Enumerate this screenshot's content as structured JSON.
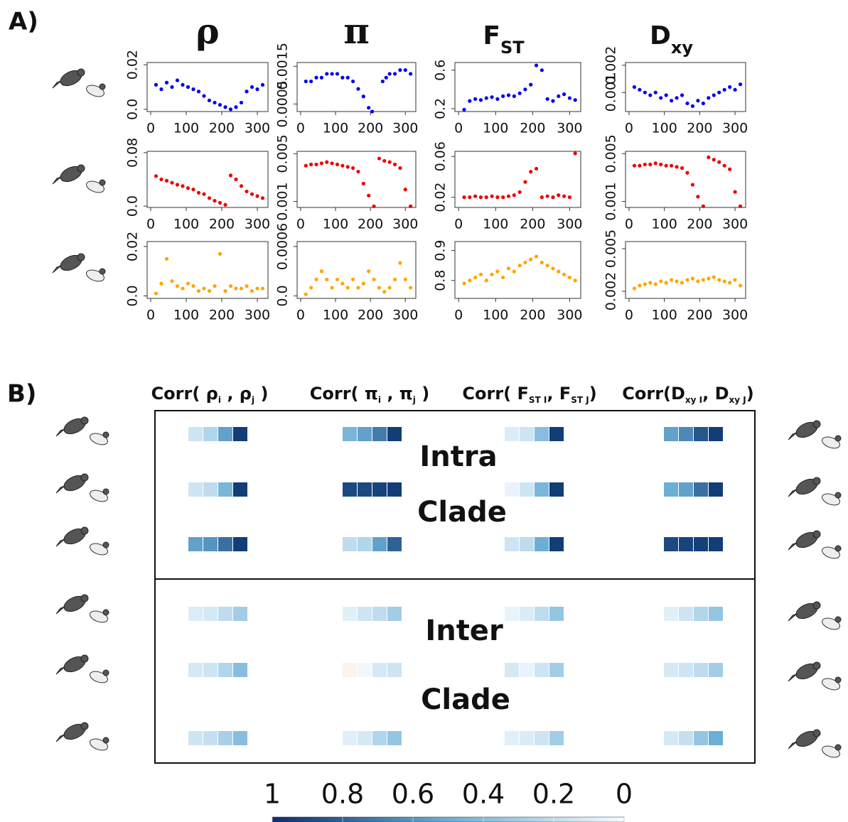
{
  "labels": {
    "a": "A)",
    "b": "B)"
  },
  "column_titles": [
    {
      "main": "ρ"
    },
    {
      "main": "π"
    },
    {
      "main": "F",
      "sub": "ST"
    },
    {
      "main": "D",
      "sub": "xy"
    }
  ],
  "chart_data": [
    {
      "type": "scatter",
      "color": "#0000ee",
      "xlim": [
        -10,
        330
      ],
      "xticks": [
        0,
        100,
        200,
        300
      ],
      "ylim": [
        -0.001,
        0.021
      ],
      "yticks": [
        {
          "value": 0,
          "label": "0.0"
        },
        0.02
      ],
      "x": [
        15,
        30,
        45,
        60,
        75,
        90,
        105,
        120,
        135,
        150,
        165,
        180,
        195,
        210,
        225,
        240,
        255,
        270,
        285,
        300,
        315
      ],
      "values": [
        0.011,
        0.009,
        0.012,
        0.01,
        0.013,
        0.011,
        0.01,
        0.009,
        0.008,
        0.006,
        0.004,
        0.003,
        0.002,
        0.001,
        0,
        0.001,
        0.003,
        0.008,
        0.01,
        0.009,
        0.011
      ]
    },
    {
      "type": "scatter",
      "color": "#0000ee",
      "xlim": [
        -10,
        330
      ],
      "xticks": [
        0,
        100,
        200,
        300
      ],
      "ylim": [
        0.0003,
        0.0016
      ],
      "yticks": [
        0.0005,
        0.0015
      ],
      "x": [
        15,
        30,
        45,
        60,
        75,
        90,
        105,
        120,
        135,
        150,
        165,
        180,
        195,
        205,
        235,
        245,
        255,
        270,
        285,
        300,
        315
      ],
      "values": [
        0.0011,
        0.0011,
        0.0012,
        0.0012,
        0.0013,
        0.0013,
        0.0013,
        0.0012,
        0.0012,
        0.0011,
        0.0009,
        0.0007,
        0.0004,
        0.0003,
        0.0011,
        0.0012,
        0.0013,
        0.0013,
        0.0014,
        0.0014,
        0.0013
      ]
    },
    {
      "type": "scatter",
      "color": "#0000ee",
      "xlim": [
        -10,
        330
      ],
      "xticks": [
        0,
        100,
        200,
        300
      ],
      "ylim": [
        0.17,
        0.68
      ],
      "yticks": [
        0.2,
        0.6
      ],
      "x": [
        15,
        30,
        45,
        60,
        75,
        90,
        105,
        120,
        135,
        150,
        165,
        180,
        195,
        210,
        225,
        240,
        255,
        270,
        285,
        300,
        315
      ],
      "values": [
        0.19,
        0.28,
        0.3,
        0.29,
        0.31,
        0.32,
        0.3,
        0.33,
        0.34,
        0.33,
        0.36,
        0.4,
        0.45,
        0.65,
        0.6,
        0.3,
        0.28,
        0.33,
        0.35,
        0.31,
        0.29
      ]
    },
    {
      "type": "scatter",
      "color": "#0000ee",
      "xlim": [
        -10,
        330
      ],
      "xticks": [
        0,
        100,
        200,
        300
      ],
      "ylim": [
        0.0003,
        0.0021
      ],
      "yticks": [
        0.001,
        0.002
      ],
      "x": [
        15,
        30,
        45,
        60,
        75,
        90,
        105,
        120,
        135,
        150,
        165,
        180,
        195,
        210,
        225,
        240,
        255,
        270,
        285,
        300,
        315
      ],
      "values": [
        0.0012,
        0.0011,
        0.001,
        0.0009,
        0.001,
        0.0008,
        0.0009,
        0.0007,
        0.0008,
        0.0009,
        0.0006,
        0.0005,
        0.0007,
        0.0006,
        0.0008,
        0.0009,
        0.001,
        0.0011,
        0.0012,
        0.0011,
        0.0013
      ]
    },
    {
      "type": "scatter",
      "color": "#ee0000",
      "xlim": [
        -10,
        330
      ],
      "xticks": [
        0,
        100,
        200,
        300
      ],
      "ylim": [
        -0.002,
        0.082
      ],
      "yticks": [
        {
          "value": 0,
          "label": "0.0"
        },
        0.08
      ],
      "x": [
        15,
        30,
        45,
        60,
        75,
        90,
        105,
        120,
        135,
        150,
        165,
        180,
        195,
        210,
        225,
        240,
        255,
        270,
        285,
        300,
        315
      ],
      "values": [
        0.045,
        0.04,
        0.038,
        0.035,
        0.032,
        0.03,
        0.027,
        0.025,
        0.02,
        0.018,
        0.012,
        0.008,
        0.005,
        0.002,
        0.046,
        0.04,
        0.03,
        0.022,
        0.018,
        0.015,
        0.012
      ]
    },
    {
      "type": "scatter",
      "color": "#ee0000",
      "xlim": [
        -10,
        330
      ],
      "xticks": [
        0,
        100,
        200,
        300
      ],
      "ylim": [
        0.0005,
        0.0052
      ],
      "yticks": [
        0.001,
        0.005
      ],
      "x": [
        15,
        30,
        45,
        60,
        75,
        90,
        105,
        120,
        135,
        150,
        165,
        180,
        195,
        210,
        225,
        240,
        255,
        270,
        285,
        300,
        315
      ],
      "values": [
        0.004,
        0.0041,
        0.0041,
        0.0042,
        0.0043,
        0.0042,
        0.0041,
        0.004,
        0.0039,
        0.0038,
        0.0035,
        0.0025,
        0.0015,
        0.0006,
        0.0046,
        0.0044,
        0.0043,
        0.0041,
        0.0038,
        0.002,
        0.0006
      ]
    },
    {
      "type": "scatter",
      "color": "#ee0000",
      "xlim": [
        -10,
        330
      ],
      "xticks": [
        0,
        100,
        200,
        300
      ],
      "ylim": [
        0.01,
        0.065
      ],
      "yticks": [
        0.02,
        0.06
      ],
      "x": [
        15,
        30,
        45,
        60,
        75,
        90,
        105,
        120,
        135,
        150,
        165,
        180,
        195,
        210,
        225,
        240,
        255,
        270,
        285,
        300,
        315
      ],
      "values": [
        0.02,
        0.02,
        0.021,
        0.02,
        0.02,
        0.021,
        0.02,
        0.02,
        0.021,
        0.022,
        0.025,
        0.035,
        0.045,
        0.048,
        0.02,
        0.021,
        0.02,
        0.022,
        0.021,
        0.02,
        0.063
      ]
    },
    {
      "type": "scatter",
      "color": "#ee0000",
      "xlim": [
        -10,
        330
      ],
      "xticks": [
        0,
        100,
        200,
        300
      ],
      "ylim": [
        0.0005,
        0.0052
      ],
      "yticks": [
        0.001,
        0.005
      ],
      "x": [
        15,
        30,
        45,
        60,
        75,
        90,
        105,
        120,
        135,
        150,
        165,
        180,
        195,
        210,
        225,
        240,
        255,
        270,
        285,
        300,
        315
      ],
      "values": [
        0.004,
        0.004,
        0.0041,
        0.0041,
        0.0042,
        0.0041,
        0.004,
        0.004,
        0.0039,
        0.0038,
        0.0034,
        0.0024,
        0.0014,
        0.0006,
        0.0047,
        0.0045,
        0.0043,
        0.004,
        0.0037,
        0.0018,
        0.0006
      ]
    },
    {
      "type": "scatter",
      "color": "#ffa500",
      "xlim": [
        -10,
        330
      ],
      "xticks": [
        0,
        100,
        200,
        300
      ],
      "ylim": [
        -0.001,
        0.022
      ],
      "yticks": [
        {
          "value": 0,
          "label": "0.0"
        },
        0.02
      ],
      "x": [
        15,
        30,
        45,
        60,
        75,
        90,
        105,
        120,
        135,
        150,
        165,
        180,
        195,
        210,
        225,
        240,
        255,
        270,
        285,
        300,
        315
      ],
      "values": [
        0.001,
        0.005,
        0.015,
        0.006,
        0.004,
        0.003,
        0.005,
        0.004,
        0.002,
        0.003,
        0.002,
        0.004,
        0.017,
        0.002,
        0.004,
        0.003,
        0.003,
        0.004,
        0.002,
        0.003,
        0.003
      ]
    },
    {
      "type": "scatter",
      "color": "#ffa500",
      "xlim": [
        -10,
        330
      ],
      "xticks": [
        0,
        100,
        200,
        300
      ],
      "ylim": [
        -3e-05,
        0.00066
      ],
      "yticks": [
        {
          "value": 0,
          "label": "0.0"
        },
        0.0006
      ],
      "x": [
        15,
        30,
        45,
        60,
        75,
        90,
        105,
        120,
        135,
        150,
        165,
        180,
        195,
        210,
        225,
        240,
        255,
        270,
        285,
        300,
        315
      ],
      "values": [
        2e-05,
        0.0001,
        0.0002,
        0.0003,
        0.0002,
        0.0001,
        0.0002,
        0.00015,
        0.0001,
        0.0002,
        0.0001,
        0.00015,
        0.0003,
        0.0002,
        0.0001,
        5e-05,
        0.0001,
        0.0002,
        0.0004,
        0.0002,
        0.0001
      ]
    },
    {
      "type": "scatter",
      "color": "#ffa500",
      "xlim": [
        -10,
        330
      ],
      "xticks": [
        0,
        100,
        200,
        300
      ],
      "ylim": [
        0.74,
        0.93
      ],
      "yticks": [
        0.8,
        0.9
      ],
      "x": [
        15,
        30,
        45,
        60,
        75,
        90,
        105,
        120,
        135,
        150,
        165,
        180,
        195,
        210,
        225,
        240,
        255,
        270,
        285,
        300,
        315
      ],
      "values": [
        0.79,
        0.8,
        0.81,
        0.82,
        0.8,
        0.82,
        0.83,
        0.81,
        0.84,
        0.83,
        0.85,
        0.86,
        0.87,
        0.88,
        0.86,
        0.85,
        0.84,
        0.83,
        0.82,
        0.81,
        0.8
      ]
    },
    {
      "type": "scatter",
      "color": "#ffa500",
      "xlim": [
        -10,
        330
      ],
      "xticks": [
        0,
        100,
        200,
        300
      ],
      "ylim": [
        0.0015,
        0.0055
      ],
      "yticks": [
        0.002,
        0.005
      ],
      "x": [
        15,
        30,
        45,
        60,
        75,
        90,
        105,
        120,
        135,
        150,
        165,
        180,
        195,
        210,
        225,
        240,
        255,
        270,
        285,
        300,
        315
      ],
      "values": [
        0.0022,
        0.0024,
        0.0025,
        0.0026,
        0.0025,
        0.0027,
        0.0026,
        0.0028,
        0.0027,
        0.0026,
        0.0028,
        0.0029,
        0.0027,
        0.0028,
        0.0029,
        0.003,
        0.0028,
        0.0027,
        0.0026,
        0.0028,
        0.0024
      ]
    },
    {
      "type": "heatmap",
      "headers": [
        [
          "Corr( ρ",
          "i",
          " , ρ",
          "j",
          " )"
        ],
        [
          "Corr( π",
          "i",
          " , π",
          "j",
          " )"
        ],
        [
          "Corr( F",
          "ST I",
          ", F",
          "ST J",
          ")"
        ],
        [
          "Corr(D",
          "xy I",
          ", D",
          "xy J",
          ")"
        ]
      ],
      "row_labels": [
        "Intra",
        "Clade",
        "Inter",
        "Clade"
      ],
      "values": [
        [
          [
            0.15,
            0.25,
            0.55,
            0.95
          ],
          [
            0.45,
            0.55,
            0.7,
            0.95
          ],
          [
            0.1,
            0.15,
            0.4,
            0.95
          ],
          [
            0.55,
            0.65,
            0.85,
            0.95
          ]
        ],
        [
          [
            0.15,
            0.2,
            0.45,
            0.95
          ],
          [
            0.9,
            0.9,
            0.92,
            0.95
          ],
          [
            0.05,
            0.15,
            0.45,
            0.95
          ],
          [
            0.5,
            0.55,
            0.75,
            0.95
          ]
        ],
        [
          [
            0.55,
            0.6,
            0.75,
            0.95
          ],
          [
            0.2,
            0.25,
            0.55,
            0.8
          ],
          [
            0.15,
            0.2,
            0.5,
            0.95
          ],
          [
            0.9,
            0.92,
            0.94,
            0.95
          ]
        ],
        [
          [
            0.1,
            0.12,
            0.2,
            0.3
          ],
          [
            0.08,
            0.15,
            0.2,
            0.3
          ],
          [
            0.05,
            0.1,
            0.2,
            0.35
          ],
          [
            0.08,
            0.15,
            0.25,
            0.35
          ]
        ],
        [
          [
            0.12,
            0.15,
            0.25,
            0.4
          ],
          [
            -0.02,
            0.02,
            0.12,
            0.15
          ],
          [
            0.12,
            0.05,
            0.15,
            0.3
          ],
          [
            0.12,
            0.15,
            0.2,
            0.3
          ]
        ],
        [
          [
            0.15,
            0.18,
            0.28,
            0.4
          ],
          [
            0.08,
            0.12,
            0.25,
            0.35
          ],
          [
            0.08,
            0.1,
            0.15,
            0.3
          ],
          [
            0.12,
            0.18,
            0.35,
            0.5
          ]
        ]
      ],
      "colorbar_lim": [
        1,
        0
      ],
      "colorbar_ticks": [
        1,
        0.8,
        0.6,
        0.4,
        0.2,
        0
      ]
    }
  ]
}
